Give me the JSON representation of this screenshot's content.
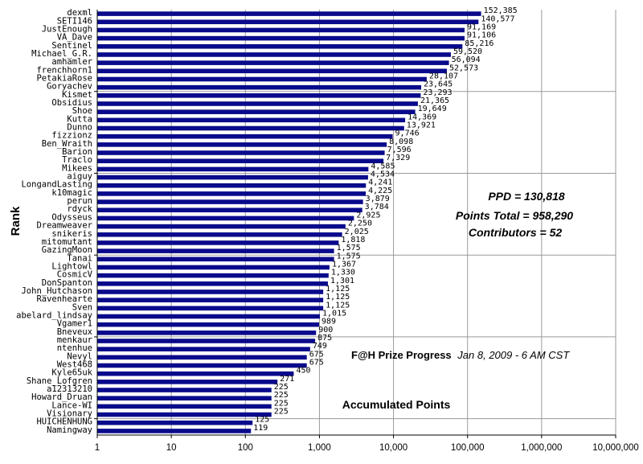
{
  "chart_data": {
    "type": "bar",
    "orientation": "horizontal",
    "xscale": "log",
    "xlim": [
      1,
      10000000
    ],
    "x_ticks": [
      "1",
      "10",
      "100",
      "1,000",
      "10,000",
      "100,000",
      "1,000,000",
      "10,000,000"
    ],
    "ylabel": "Rank",
    "bar_color": "#0a0a8c",
    "gridlines": true,
    "categories": [
      "dexml",
      "SETI146",
      "JustEnough",
      "VA_Dave",
      "Sentinel",
      "Michael_G.R.",
      "amhamler",
      "frenchhorn1",
      "PetakiaRose",
      "Goryachev",
      "Kismet",
      "Obsidius",
      "Shoe",
      "Kutta",
      "Dunno",
      "fizzionz",
      "Ben_Wraith",
      "Barion",
      "Traclo",
      "Mikees",
      "aiguy",
      "LongandLasting",
      "k10magic",
      "perun",
      "rdyck",
      "Odysseus",
      "Dreamweaver",
      "snikeris",
      "mitomutant",
      "GazingMoon",
      "Tanai",
      "Lightowl",
      "CosmicV",
      "DonSpanton",
      "John_Hutchason",
      "Ravenhearte",
      "Sven",
      "abelard_lindsay",
      "Vgamer1",
      "Bneveux",
      "menkaur",
      "ntenhue",
      "Nevyl",
      "West468",
      "Kyle65uk",
      "Shane_Lofgren",
      "a12313210",
      "Howard_Druan",
      "Lance-WI",
      "Visionary",
      "HUICHENHUNG",
      "Namingway"
    ],
    "values": [
      152385,
      140577,
      91169,
      91106,
      85216,
      59520,
      56094,
      52573,
      28107,
      23645,
      23293,
      21365,
      19649,
      14369,
      13921,
      9746,
      8098,
      7596,
      7329,
      4585,
      4534,
      4241,
      4225,
      3879,
      3784,
      2925,
      2250,
      2025,
      1818,
      1575,
      1575,
      1367,
      1330,
      1301,
      1125,
      1125,
      1125,
      1015,
      989,
      900,
      875,
      749,
      675,
      675,
      450,
      271,
      225,
      225,
      225,
      225,
      125,
      119
    ],
    "value_labels": [
      "152,385",
      "140,577",
      "91,169",
      "91,106",
      "85,216",
      "59,520",
      "56,094",
      "52,573",
      "28,107",
      "23,645",
      "23,293",
      "21,365",
      "19,649",
      "14,369",
      "13,921",
      "9,746",
      "8,098",
      "7,596",
      "7,329",
      "4,585",
      "4,534",
      "4,241",
      "4,225",
      "3,879",
      "3,784",
      "2,925",
      "2,250",
      "2,025",
      "1,818",
      "1,575",
      "1,575",
      "1,367",
      "1,330",
      "1,301",
      "1,125",
      "1,125",
      "1,125",
      "1,015",
      "989",
      "900",
      "875",
      "749",
      "675",
      "675",
      "450",
      "271",
      "225",
      "225",
      "225",
      "225",
      "125",
      "119"
    ],
    "annotations": {
      "ppd": "PPD = 130,818",
      "points_total": "Points Total = 958,290",
      "contributors": "Contributors = 52",
      "progress_bold": "F@H Prize Progress",
      "progress_date": "Jan 8, 2009 - 6 AM CST",
      "accumulated": "Accumulated Points"
    }
  }
}
